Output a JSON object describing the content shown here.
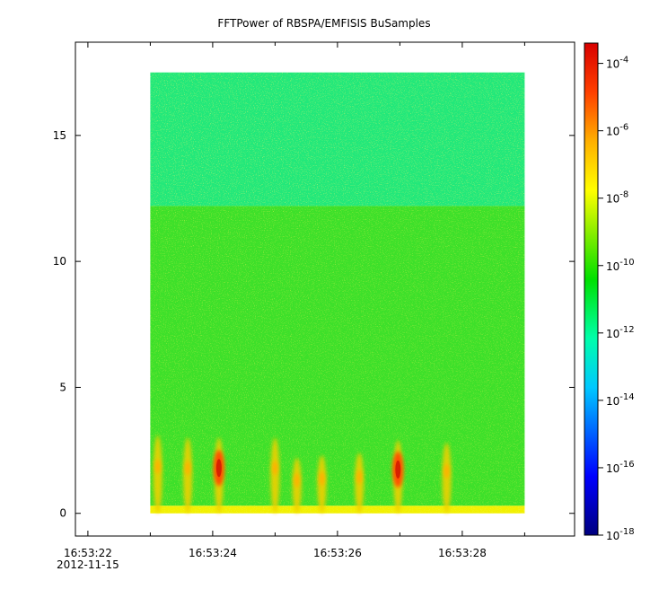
{
  "chart_data": {
    "type": "heatmap",
    "title": "FFTPower of RBSPA/EMFISIS  BuSamples",
    "xlabel": "",
    "ylabel": "",
    "x_start": "16:53:22",
    "x_end": "16:53:30",
    "x_date_label": "2012-11-15",
    "x_ticks": [
      {
        "value": 0,
        "label": "16:53:22"
      },
      {
        "value": 2,
        "label": "16:53:24"
      },
      {
        "value": 4,
        "label": "16:53:26"
      },
      {
        "value": 6,
        "label": "16:53:28"
      }
    ],
    "x_minor_ticks": [
      1,
      3,
      5,
      7
    ],
    "xlim": [
      -0.2,
      7.8
    ],
    "ylim": [
      -0.9,
      18.7
    ],
    "y_ticks": [
      0,
      5,
      10,
      15
    ],
    "data_x_range": [
      1.0,
      7.0
    ],
    "data_y_range": [
      0,
      17.5
    ],
    "colorbar": {
      "scale": "log",
      "range": [
        1e-18,
        0.0004
      ],
      "tick_exponents": [
        -18,
        -16,
        -14,
        -12,
        -10,
        -8,
        -6,
        -4
      ],
      "tick_base": "10"
    },
    "background_levels": [
      {
        "y_from": 12.2,
        "y_to": 17.5,
        "level": "10^-12"
      },
      {
        "y_from": 0.3,
        "y_to": 12.2,
        "level": "10^-10"
      },
      {
        "y_from": 0,
        "y_to": 0.3,
        "level": "10^-8"
      }
    ],
    "bursts": [
      {
        "x": 1.12,
        "y_top": 3.1,
        "peak": "10^-8"
      },
      {
        "x": 1.6,
        "y_top": 3.0,
        "peak": "10^-8"
      },
      {
        "x": 2.1,
        "y_top": 3.0,
        "peak": "10^-6"
      },
      {
        "x": 3.0,
        "y_top": 3.0,
        "peak": "10^-8"
      },
      {
        "x": 3.35,
        "y_top": 2.2,
        "peak": "10^-8"
      },
      {
        "x": 3.75,
        "y_top": 2.3,
        "peak": "10^-8"
      },
      {
        "x": 4.35,
        "y_top": 2.4,
        "peak": "10^-8"
      },
      {
        "x": 4.97,
        "y_top": 2.9,
        "peak": "10^-6"
      },
      {
        "x": 5.75,
        "y_top": 2.8,
        "peak": "10^-8"
      }
    ]
  }
}
